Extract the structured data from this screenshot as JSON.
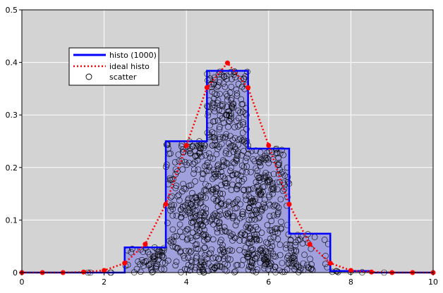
{
  "chart_data": {
    "type": "histogram",
    "xlim": [
      0,
      10
    ],
    "ylim": [
      0,
      0.5
    ],
    "xticks": [
      0,
      2,
      4,
      6,
      8,
      10
    ],
    "yticks": [
      0,
      0.1,
      0.2,
      0.3,
      0.4,
      0.5
    ],
    "xtick_labels": [
      "0",
      "2",
      "4",
      "6",
      "8",
      "10"
    ],
    "ytick_labels": [
      "0",
      "0.1",
      "0.2",
      "0.3",
      "0.4",
      "0.5"
    ],
    "grid": true,
    "background": "#d3d3d3",
    "legend_position": "upper-left",
    "series": [
      {
        "name": "histo (1000)",
        "kind": "step-histogram",
        "color": "#0000ff",
        "fill": "#a0a0dc",
        "bin_edges": [
          0,
          0.5,
          1,
          1.5,
          2,
          2.5,
          3,
          3.5,
          4,
          4.5,
          5,
          5.5,
          6,
          6.5,
          7,
          7.5,
          8,
          8.5,
          9,
          9.5,
          10
        ],
        "values": [
          0,
          0,
          0,
          0,
          0,
          0.048,
          0.048,
          0.25,
          0.25,
          0.384,
          0.384,
          0.236,
          0.236,
          0.074,
          0.074,
          0.003,
          0.003,
          0,
          0,
          0
        ]
      },
      {
        "name": "ideal histo",
        "kind": "dotted-line-markers",
        "color": "#ff0000",
        "x": [
          0,
          0.5,
          1,
          1.5,
          2,
          2.5,
          3,
          3.5,
          4,
          4.5,
          5,
          5.5,
          6,
          6.5,
          7,
          7.5,
          8,
          8.5,
          9,
          9.5,
          10
        ],
        "y": [
          0,
          0,
          0,
          0.001,
          0.004,
          0.018,
          0.054,
          0.13,
          0.242,
          0.352,
          0.399,
          0.352,
          0.242,
          0.13,
          0.054,
          0.018,
          0.004,
          0.001,
          0,
          0,
          0
        ]
      },
      {
        "name": "scatter",
        "kind": "open-circles",
        "color": "#000000",
        "count": 1000
      }
    ]
  }
}
